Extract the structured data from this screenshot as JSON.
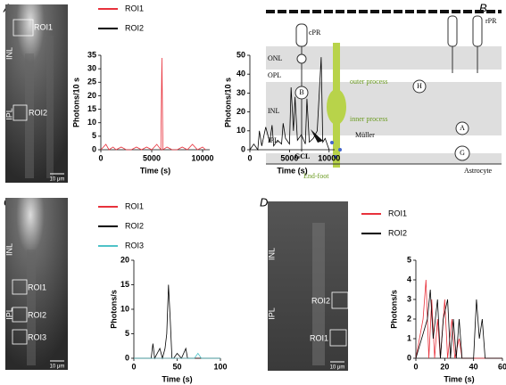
{
  "panel_labels": [
    "A",
    "B",
    "C",
    "D"
  ],
  "images": [
    {
      "layers": [
        "INL",
        "IPL"
      ],
      "rois": [
        "ROI1",
        "ROI2"
      ],
      "scale": "10 μm"
    },
    {
      "layers": [
        "INL",
        "IPL"
      ],
      "rois": [
        "ROI1",
        "ROI2",
        "ROI3"
      ],
      "scale": "10 μm"
    },
    {
      "layers": [
        "INL",
        "IPL"
      ],
      "rois": [
        "ROI2",
        "ROI1"
      ],
      "scale": "10 μm"
    }
  ],
  "diagram": {
    "cone": "cPR",
    "rod": "rPR",
    "onl": "ONL",
    "opl": "OPL",
    "inl": "INL",
    "ipl": "IPL",
    "gcl": "GCL",
    "horizontal": "H",
    "bipolar": "B",
    "amacrine": "A",
    "ganglion": "G",
    "outer_process": "outer process",
    "inner_process": "inner process",
    "muller": "Müller",
    "end_foot": "End-foot",
    "astrocyte": "Astrocyte"
  },
  "chart_data": [
    {
      "type": "line",
      "y_label": "Photons/10 s",
      "x_label": "Time (s)",
      "xlim": [
        0,
        10700
      ],
      "xticks": [
        0,
        5000,
        10000
      ],
      "ylim": [
        0,
        35
      ],
      "yticks": [
        0,
        5,
        10,
        15,
        20,
        25,
        30,
        35
      ],
      "series": [
        {
          "name": "ROI1",
          "color": "#e8323c",
          "x": [
            0,
            500,
            800,
            1200,
            1500,
            2000,
            2500,
            3000,
            3500,
            4000,
            4500,
            5000,
            5500,
            5900,
            6000,
            6100,
            6500,
            7000,
            7500,
            8000,
            8500,
            9000,
            9500,
            10000,
            10300
          ],
          "values": [
            0,
            2,
            0,
            1,
            0,
            1,
            0,
            0,
            1,
            0,
            1,
            0,
            2,
            0,
            34,
            0,
            1,
            0,
            0,
            1,
            0,
            2,
            0,
            1,
            0
          ]
        }
      ]
    },
    {
      "type": "line",
      "y_label": "Photons/10 s",
      "x_label": "Time (s)",
      "xlim": [
        0,
        10700
      ],
      "xticks": [
        0,
        5000,
        10000
      ],
      "ylim": [
        0,
        50
      ],
      "yticks": [
        0,
        10,
        20,
        30,
        40,
        50
      ],
      "series": [
        {
          "name": "ROI2",
          "color": "#000000",
          "x": [
            0,
            500,
            1000,
            1200,
            1500,
            2000,
            2500,
            2800,
            3000,
            3500,
            4000,
            4200,
            4500,
            5000,
            5200,
            5500,
            5700,
            6000,
            6500,
            7000,
            7200,
            7500,
            8000,
            8500,
            9000,
            9200,
            9500,
            10000
          ],
          "values": [
            0,
            3,
            0,
            10,
            2,
            12,
            4,
            13,
            2,
            5,
            3,
            14,
            6,
            3,
            33,
            10,
            28,
            5,
            8,
            3,
            27,
            4,
            6,
            10,
            49,
            4,
            6,
            0
          ]
        }
      ]
    },
    {
      "type": "line",
      "y_label": "Photons/s",
      "x_label": "Time (s)",
      "xlim": [
        0,
        100
      ],
      "xticks": [
        0,
        50,
        100
      ],
      "ylim": [
        0,
        20
      ],
      "yticks": [
        0,
        5,
        10,
        15,
        20
      ],
      "series": [
        {
          "name": "ROI1",
          "color": "#e8323c",
          "x": [
            0,
            100
          ],
          "values": [
            0,
            0
          ]
        },
        {
          "name": "ROI2",
          "color": "#000000",
          "x": [
            0,
            20,
            22,
            24,
            30,
            33,
            36,
            38,
            40,
            42,
            44,
            46,
            50,
            55,
            60,
            62,
            65,
            100
          ],
          "values": [
            0,
            0,
            3,
            0,
            2,
            0,
            2,
            5,
            15,
            8,
            0,
            0,
            1,
            0,
            2,
            0,
            0,
            0
          ]
        },
        {
          "name": "ROI3",
          "color": "#4fc3c8",
          "x": [
            0,
            70,
            74,
            78,
            100
          ],
          "values": [
            0,
            0,
            1,
            0,
            0
          ]
        }
      ]
    },
    {
      "type": "line",
      "y_label": "Photons/s",
      "x_label": "Time (s)",
      "xlim": [
        0,
        60
      ],
      "xticks": [
        0,
        20,
        40,
        60
      ],
      "ylim": [
        0,
        5
      ],
      "yticks": [
        0,
        1,
        2,
        3,
        4,
        5
      ],
      "series": [
        {
          "name": "ROI1",
          "color": "#e8323c",
          "x": [
            0,
            5,
            7,
            9,
            11,
            13,
            15,
            17,
            20,
            22,
            25,
            27,
            30,
            32,
            35,
            60
          ],
          "values": [
            0,
            2,
            4,
            0,
            3,
            0,
            2,
            0,
            3,
            0,
            2,
            0,
            1,
            0,
            0,
            0
          ]
        },
        {
          "name": "ROI2",
          "color": "#000000",
          "x": [
            0,
            8,
            10,
            12,
            15,
            17,
            19,
            22,
            24,
            26,
            28,
            30,
            32,
            40,
            42,
            44,
            46,
            48,
            60
          ],
          "values": [
            0,
            2,
            3.5,
            1,
            3,
            0,
            2,
            3,
            0,
            2,
            0,
            2,
            0,
            0,
            3,
            1,
            2,
            0,
            0
          ]
        }
      ]
    }
  ]
}
